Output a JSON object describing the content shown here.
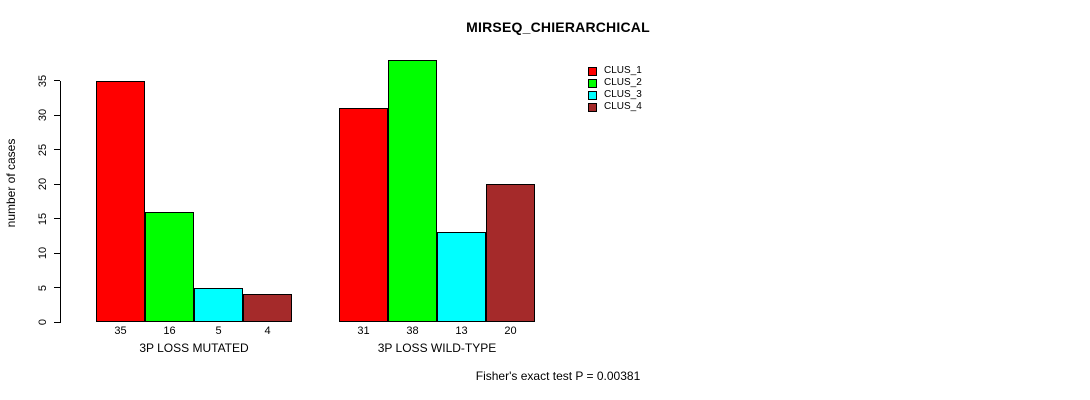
{
  "chart_data": {
    "type": "bar",
    "title": "MIRSEQ_CHIERARCHICAL",
    "ylabel": "number of cases",
    "xlabel": "",
    "ylim": [
      0,
      35
    ],
    "yticks": [
      0,
      5,
      10,
      15,
      20,
      25,
      30,
      35
    ],
    "grid": false,
    "legend_position": "top-right-outside",
    "bar_value_labels": true,
    "series_names": [
      "CLUS_1",
      "CLUS_2",
      "CLUS_3",
      "CLUS_4"
    ],
    "legend": [
      {
        "label": "CLUS_1",
        "color": "#FF0000"
      },
      {
        "label": "CLUS_2",
        "color": "#00FF00"
      },
      {
        "label": "CLUS_3",
        "color": "#00FFFF"
      },
      {
        "label": "CLUS_4",
        "color": "#A52A2A"
      }
    ],
    "groups": [
      {
        "label": "3P LOSS MUTATED",
        "values": [
          35,
          16,
          5,
          4
        ]
      },
      {
        "label": "3P LOSS WILD-TYPE",
        "values": [
          31,
          38,
          13,
          20
        ]
      }
    ],
    "annotation": "Fisher's exact test P = 0.00381"
  }
}
